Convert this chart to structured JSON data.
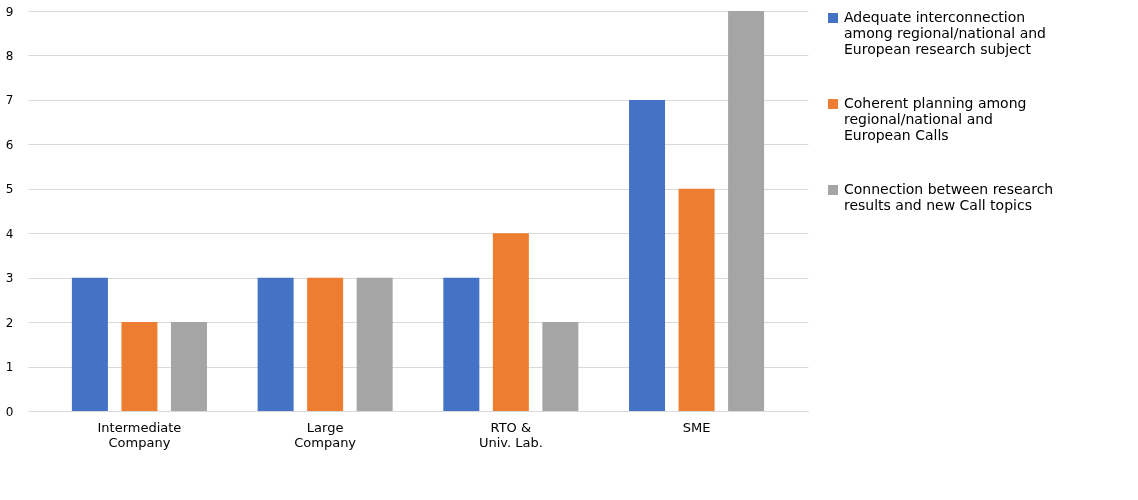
{
  "chart_data": {
    "type": "bar",
    "categories": [
      "Intermediate Company",
      "Large Company",
      "RTO & Univ. Lab.",
      "SME"
    ],
    "series": [
      {
        "name": "Adequate interconnection among regional/national and European research subject",
        "color": "#4472c4",
        "values": [
          3,
          3,
          3,
          7
        ]
      },
      {
        "name": "Coherent planning among regional/national and European Calls",
        "color": "#ed7d31",
        "values": [
          2,
          3,
          4,
          5
        ]
      },
      {
        "name": "Connection between research results and new Call topics",
        "color": "#a5a5a5",
        "values": [
          2,
          3,
          2,
          9
        ]
      }
    ],
    "ylim": [
      0,
      9
    ],
    "yticks": [
      0,
      1,
      2,
      3,
      4,
      5,
      6,
      7,
      8,
      9
    ],
    "grid": "y",
    "legend": "right"
  }
}
